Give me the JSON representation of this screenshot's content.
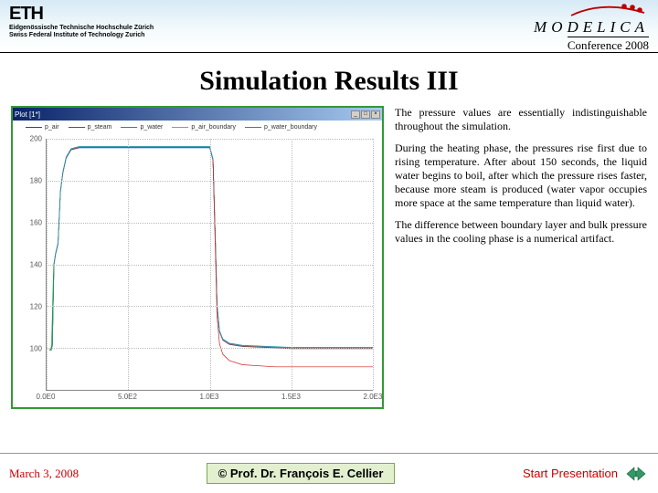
{
  "header": {
    "eth_logo": "ETH",
    "eth_line1": "Eidgenössische Technische Hochschule Zürich",
    "eth_line2": "Swiss Federal Institute of Technology Zurich",
    "modelica": "MODELICA",
    "conference": "Conference 2008"
  },
  "title": "Simulation Results III",
  "plot": {
    "window_title": "Plot [1*]",
    "legend": [
      {
        "label": "p_air",
        "color": "#1f3fbf"
      },
      {
        "label": "p_steam",
        "color": "#d02020"
      },
      {
        "label": "p_water",
        "color": "#20a020"
      },
      {
        "label": "p_air_boundary",
        "color": "#e060e0"
      },
      {
        "label": "p_water_boundary",
        "color": "#009999"
      }
    ],
    "y_axis": {
      "min": 80,
      "max": 200,
      "ticks": [
        100,
        120,
        140,
        160,
        180,
        200
      ]
    },
    "x_axis": {
      "min": 0,
      "max": 2000,
      "ticks": [
        0,
        500,
        1000,
        1500,
        2000
      ],
      "labels": [
        "0.0E0",
        "5.0E2",
        "1.0E3",
        "1.5E3",
        "2.0E3"
      ]
    },
    "curves": {
      "main_top": {
        "color": "#1f3fbf",
        "points": [
          [
            20,
            99
          ],
          [
            35,
            101
          ],
          [
            45,
            140
          ],
          [
            55,
            145
          ],
          [
            70,
            150
          ],
          [
            85,
            175
          ],
          [
            100,
            184
          ],
          [
            120,
            191
          ],
          [
            150,
            195
          ],
          [
            200,
            196
          ],
          [
            400,
            196
          ],
          [
            600,
            196
          ],
          [
            800,
            196
          ],
          [
            1000,
            196
          ],
          [
            1020,
            190
          ],
          [
            1035,
            150
          ],
          [
            1045,
            120
          ],
          [
            1060,
            108
          ],
          [
            1080,
            104
          ],
          [
            1120,
            102
          ],
          [
            1200,
            101
          ],
          [
            1500,
            100
          ],
          [
            2000,
            100
          ]
        ]
      },
      "split_lower": {
        "color": "#d02020",
        "points": [
          [
            1020,
            190
          ],
          [
            1035,
            145
          ],
          [
            1045,
            115
          ],
          [
            1060,
            102
          ],
          [
            1080,
            97
          ],
          [
            1120,
            94
          ],
          [
            1200,
            92
          ],
          [
            1400,
            91
          ],
          [
            1700,
            91
          ],
          [
            2000,
            91
          ]
        ]
      },
      "start_notch": {
        "color": "#20a020",
        "points": [
          [
            20,
            99
          ],
          [
            30,
            99
          ],
          [
            35,
            115
          ],
          [
            40,
            130
          ],
          [
            44,
            140
          ]
        ]
      }
    },
    "background_color": "#ffffff",
    "grid_color": "#bbbbbb",
    "frame_color": "#339933"
  },
  "paragraphs": {
    "p1": "The pressure values are essentially indistinguishable throughout the simulation.",
    "p2": "During the heating phase, the pressures rise first due to rising temperature. After about 150 seconds, the liquid water begins to boil, after which the pressure rises faster, because more steam is produced (water vapor occupies more space at the same temperature than liquid water).",
    "p3": "The difference between boundary layer and bulk pressure values in the cooling phase is a numerical artifact."
  },
  "footer": {
    "date": "March 3, 2008",
    "author": "©  Prof. Dr. François E. Cellier",
    "start": "Start Presentation"
  },
  "colors": {
    "accent_red": "#cc0000",
    "frame_green": "#339933",
    "footer_box_bg": "#e2f0d0",
    "footer_box_border": "#7aa84f",
    "nav_arrow": "#339966"
  }
}
